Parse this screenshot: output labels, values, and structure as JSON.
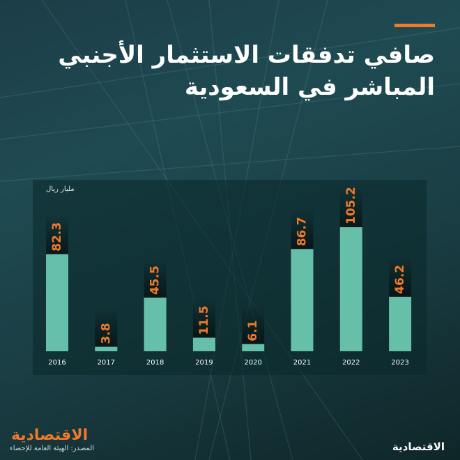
{
  "title": {
    "line1": "صافي تدفقات الاستثمار الأجنبي",
    "line2": "المباشر في السعودية"
  },
  "colors": {
    "accent": "#f07a2a",
    "bar": "#66bfa8",
    "label": "#f07a2a",
    "axis_text": "#ffffff"
  },
  "chart_data": {
    "type": "bar",
    "ylabel": "مليار ريال",
    "categories": [
      "2016",
      "2017",
      "2018",
      "2019",
      "2020",
      "2021",
      "2022",
      "2023"
    ],
    "values": [
      82.3,
      3.8,
      45.5,
      11.5,
      6.1,
      86.7,
      105.2,
      46.2
    ],
    "value_labels": [
      "82.3",
      "3.8",
      "45.5",
      "11.5",
      "6.1",
      "86.7",
      "105.2",
      "46.2"
    ],
    "ylim": [
      0,
      105.2
    ],
    "grid": false,
    "legend": "none"
  },
  "footer": {
    "brand_left": "الاقتصادية",
    "source": "المصدر: الهيئة العامة للإحصاء",
    "brand_right": "الاقتصادية"
  }
}
